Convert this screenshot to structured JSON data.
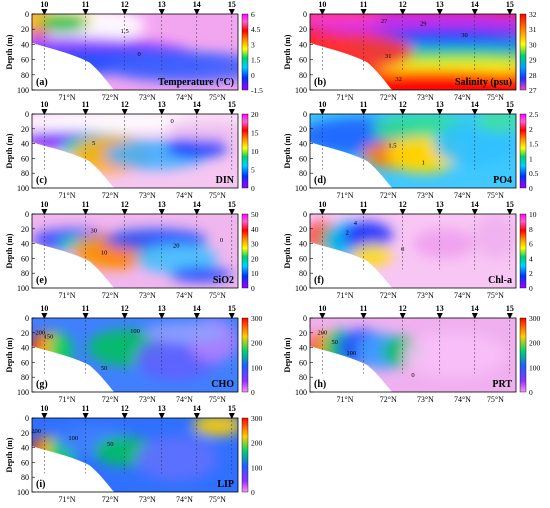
{
  "figure": {
    "depth_label": "Depth (m)",
    "station_labels": [
      "10",
      "11",
      "12",
      "13",
      "14",
      "15"
    ],
    "lat_labels": [
      "71°N",
      "72°N",
      "73°N",
      "74°N",
      "75°N"
    ],
    "depth_ticks": [
      "0",
      "20",
      "40",
      "60",
      "80",
      "100"
    ]
  },
  "chart_data": [
    {
      "type": "heatmap",
      "panel": "(a)",
      "variable": "Temperature (°C)",
      "colorbar_ticks": [
        "6",
        "4.5",
        "3",
        "1.5",
        "0",
        "-1.5"
      ],
      "contour_labels": [
        "1.5",
        "0"
      ],
      "ylim": [
        100,
        0
      ],
      "colormap": [
        "#ff00ff",
        "#ff66cc",
        "#ff0000",
        "#ff9900",
        "#ffff00",
        "#00cc66",
        "#00ccff",
        "#0033ff",
        "#9900ff"
      ]
    },
    {
      "type": "heatmap",
      "panel": "(b)",
      "variable": "Salinity (psu)",
      "colorbar_ticks": [
        "32",
        "31",
        "30",
        "29",
        "28",
        "27"
      ],
      "contour_labels": [
        "27",
        "29",
        "30",
        "31",
        "32"
      ],
      "ylim": [
        100,
        0
      ]
    },
    {
      "type": "heatmap",
      "panel": "(c)",
      "variable": "DIN",
      "colorbar_ticks": [
        "20",
        "15",
        "10",
        "5",
        "0"
      ],
      "contour_labels": [
        "0",
        "5"
      ],
      "ylim": [
        100,
        0
      ]
    },
    {
      "type": "heatmap",
      "panel": "(d)",
      "variable": "PO4",
      "colorbar_ticks": [
        "2.5",
        "2",
        "1.5",
        "1",
        "0.5",
        "0"
      ],
      "contour_labels": [
        "1.5",
        "1"
      ],
      "ylim": [
        100,
        0
      ]
    },
    {
      "type": "heatmap",
      "panel": "(e)",
      "variable": "SiO2",
      "colorbar_ticks": [
        "50",
        "40",
        "30",
        "20",
        "10",
        "0"
      ],
      "contour_labels": [
        "30",
        "10",
        "20",
        "0"
      ],
      "ylim": [
        100,
        0
      ]
    },
    {
      "type": "heatmap",
      "panel": "(f)",
      "variable": "Chl-a",
      "colorbar_ticks": [
        "10",
        "8",
        "6",
        "4",
        "2",
        "0"
      ],
      "contour_labels": [
        "4",
        "2",
        "0"
      ],
      "ylim": [
        100,
        0
      ]
    },
    {
      "type": "heatmap",
      "panel": "(g)",
      "variable": "CHO",
      "colorbar_ticks": [
        "300",
        "200",
        "100",
        "0"
      ],
      "contour_labels": [
        "200",
        "150",
        "100",
        "50"
      ],
      "ylim": [
        100,
        0
      ]
    },
    {
      "type": "heatmap",
      "panel": "(h)",
      "variable": "PRT",
      "colorbar_ticks": [
        "300",
        "200",
        "100",
        "0"
      ],
      "contour_labels": [
        "200",
        "100",
        "50",
        "0"
      ],
      "ylim": [
        100,
        0
      ]
    },
    {
      "type": "heatmap",
      "panel": "(i)",
      "variable": "LIP",
      "colorbar_ticks": [
        "300",
        "200",
        "100",
        "0"
      ],
      "contour_labels": [
        "200",
        "100",
        "50"
      ],
      "ylim": [
        100,
        0
      ]
    }
  ]
}
